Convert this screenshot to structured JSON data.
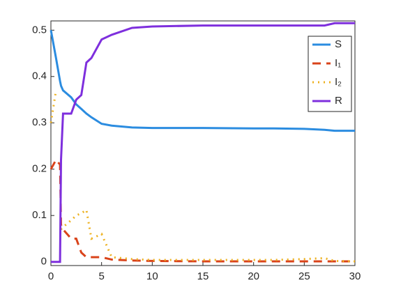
{
  "chart_data": {
    "type": "line",
    "x": [
      0,
      0.5,
      0.9,
      1,
      1.2,
      2,
      2.5,
      3,
      3.5,
      4,
      5,
      6,
      8,
      10,
      15,
      20,
      22,
      25,
      27,
      28,
      30
    ],
    "series": [
      {
        "name": "S",
        "color": "#2b8ce0",
        "style": "solid",
        "values": [
          0.5,
          0.44,
          0.39,
          0.38,
          0.37,
          0.355,
          0.34,
          0.33,
          0.32,
          0.312,
          0.298,
          0.294,
          0.29,
          0.289,
          0.289,
          0.288,
          0.288,
          0.287,
          0.285,
          0.283,
          0.283
        ]
      },
      {
        "name": "I₁",
        "color": "#d9431a",
        "style": "dashed",
        "values": [
          0.2,
          0.22,
          0.21,
          0.08,
          0.07,
          0.05,
          0.05,
          0.02,
          0.01,
          0.01,
          0.01,
          0.005,
          0.003,
          0.002,
          0.001,
          0.001,
          0.001,
          0.001,
          0.001,
          0.001,
          0.001
        ]
      },
      {
        "name": "I₂",
        "color": "#edb120",
        "style": "dotted",
        "values": [
          0.3,
          0.37,
          null,
          0.07,
          0.075,
          0.09,
          0.1,
          0.105,
          0.112,
          0.05,
          0.06,
          0.01,
          0.006,
          0.004,
          0.004,
          0.004,
          0.004,
          0.006,
          0.008,
          0.002,
          0.001
        ]
      },
      {
        "name": "R",
        "color": "#7e2fdd",
        "style": "solid",
        "values": [
          0,
          0,
          0,
          0.22,
          0.32,
          0.32,
          0.35,
          0.36,
          0.43,
          0.44,
          0.48,
          0.49,
          0.505,
          0.508,
          0.51,
          0.51,
          0.51,
          0.51,
          0.51,
          0.515,
          0.515
        ]
      }
    ],
    "xlim": [
      0,
      30
    ],
    "xticks": [
      0,
      5,
      10,
      15,
      20,
      25,
      30
    ],
    "ylim": [
      -0.008,
      0.52
    ],
    "yticks": [
      0,
      0.1,
      0.2,
      0.3,
      0.4,
      0.5
    ],
    "legend": "northeast"
  }
}
